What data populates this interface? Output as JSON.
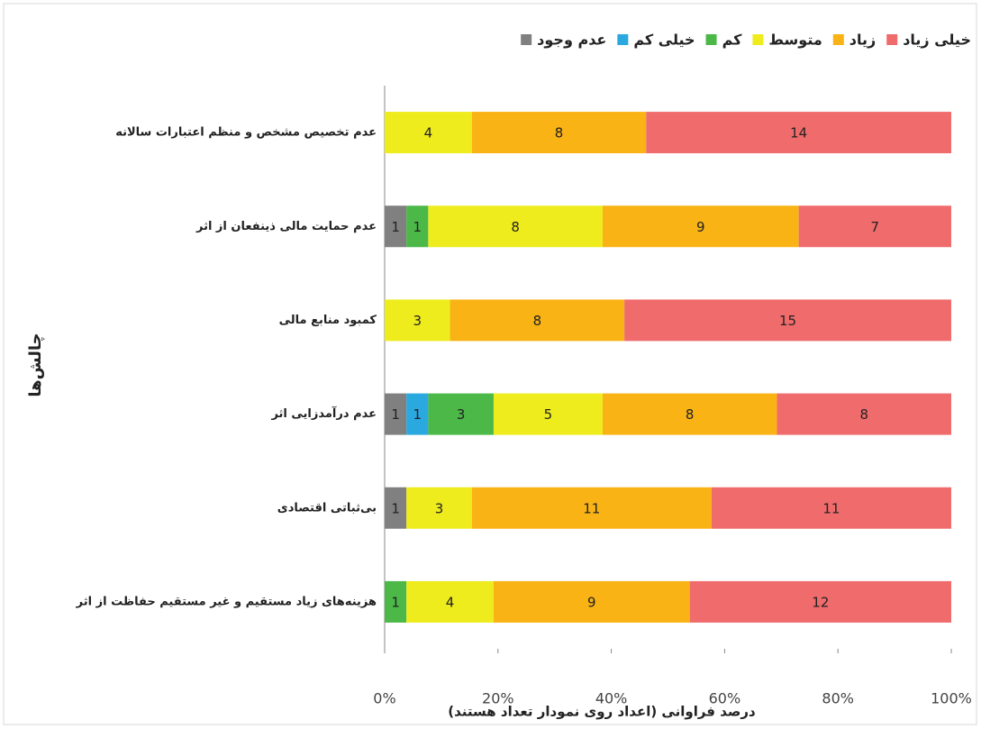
{
  "chart_data": {
    "type": "bar",
    "orientation": "horizontal",
    "stacked": "percent",
    "xlabel": "درصد فراوانی (اعداد روی نمودار تعداد هستند)",
    "ylabel": "چالش‌ها",
    "categories": [
      "عدم تخصیص مشخص و منظم اعتبارات سالانه",
      "عدم حمایت مالی ذینفعان از اثر",
      "کمبود منابع مالی",
      "عدم درآمدزایی اثر",
      "بی‌ثباتی اقتصادی",
      "هزینه‌های زیاد مستقیم و غیر مستقیم حفاظت از اثر"
    ],
    "series": [
      {
        "name": "عدم وجود",
        "color": "#808080",
        "values": [
          0,
          1,
          0,
          1,
          1,
          null
        ]
      },
      {
        "name": "خیلی کم",
        "color": "#2aa8e0",
        "values": [
          null,
          0,
          null,
          1,
          0,
          0
        ]
      },
      {
        "name": "کم",
        "color": "#4cb848",
        "values": [
          null,
          1,
          null,
          3,
          null,
          1
        ]
      },
      {
        "name": "متوسط",
        "color": "#eeec1c",
        "values": [
          4,
          8,
          3,
          5,
          3,
          4
        ]
      },
      {
        "name": "زیاد",
        "color": "#f9b315",
        "values": [
          8,
          9,
          8,
          8,
          11,
          9
        ]
      },
      {
        "name": "خیلی زیاد",
        "color": "#f06b6b",
        "values": [
          14,
          7,
          15,
          8,
          11,
          12
        ]
      }
    ],
    "xlim": [
      0,
      100
    ],
    "xticks": [
      {
        "value": 0,
        "label": "0%"
      },
      {
        "value": 20,
        "label": "20%"
      },
      {
        "value": 40,
        "label": "40%"
      },
      {
        "value": 60,
        "label": "60%"
      },
      {
        "value": 80,
        "label": "80%"
      },
      {
        "value": 100,
        "label": "100%"
      }
    ],
    "legend": "top"
  }
}
